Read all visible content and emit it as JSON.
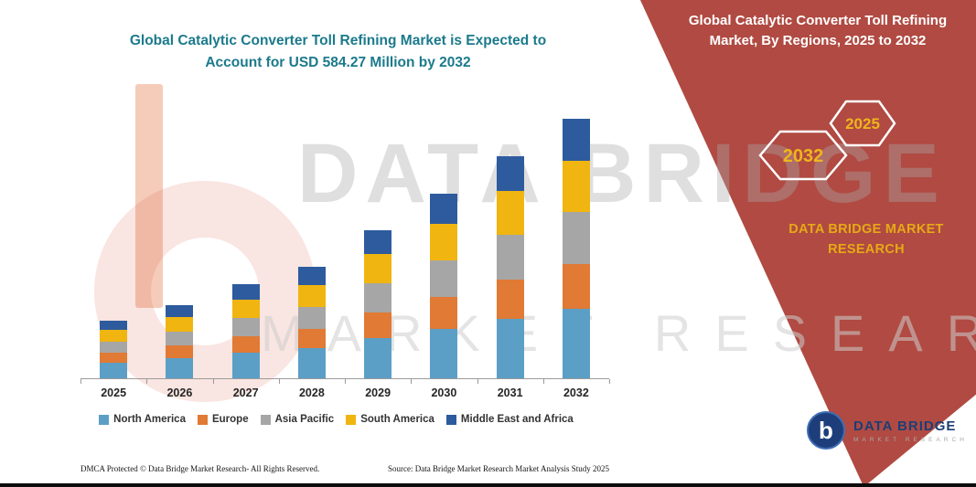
{
  "header": {
    "left_title": "Global Catalytic Converter Toll Refining Market is Expected to Account for USD 584.27 Million by 2032",
    "right_title": "Global Catalytic Converter Toll Refining Market, By Regions, 2025 to 2032"
  },
  "hexagons": {
    "back": "2032",
    "front": "2025"
  },
  "brand": {
    "line1": "DATA BRIDGE MARKET",
    "line2": "RESEARCH"
  },
  "watermark": {
    "line1": "DATA BRIDGE",
    "line2": "MARKET RESEARCH"
  },
  "logo": {
    "monogram": "b",
    "title": "DATA BRIDGE",
    "subtitle": "MARKET RESEARCH"
  },
  "footer": {
    "dmca": "DMCA Protected © Data Bridge Market Research-  All Rights Reserved.",
    "source": "Source: Data Bridge Market Research  Market Analysis Study 2025"
  },
  "colors": {
    "panel_red": "#b04a42",
    "title_teal": "#1b7a8c",
    "gold": "#e7a916"
  },
  "chart_data": {
    "type": "bar",
    "stacked": true,
    "title": "Global Catalytic Converter Toll Refining Market is Expected to Account for USD 584.27 Million by 2032",
    "xlabel": "",
    "ylabel": "",
    "units": "USD Million",
    "values_estimated": true,
    "grid": false,
    "y_axis_labels_visible": false,
    "legend_position": "bottom",
    "ylim": [
      0,
      600
    ],
    "categories": [
      "2025",
      "2026",
      "2027",
      "2028",
      "2029",
      "2030",
      "2031",
      "2032"
    ],
    "series": [
      {
        "name": "North America",
        "color": "#5b9fc6",
        "values": [
          35,
          45,
          57,
          69,
          90,
          112,
          134,
          156
        ]
      },
      {
        "name": "Europe",
        "color": "#e07a35",
        "values": [
          23,
          29,
          38,
          44,
          58,
          73,
          88,
          102
        ]
      },
      {
        "name": "Asia Pacific",
        "color": "#a6a6a6",
        "values": [
          25,
          31,
          42,
          50,
          67,
          83,
          100,
          117
        ]
      },
      {
        "name": "South America",
        "color": "#f0b510",
        "values": [
          27,
          33,
          42,
          50,
          67,
          83,
          98,
          115
        ]
      },
      {
        "name": "Middle East and Africa",
        "color": "#2e5b9d",
        "values": [
          21,
          27,
          36,
          42,
          54,
          68,
          79,
          94
        ]
      }
    ],
    "totals": [
      131,
      165,
      215,
      255,
      336,
      419,
      499,
      584
    ]
  }
}
